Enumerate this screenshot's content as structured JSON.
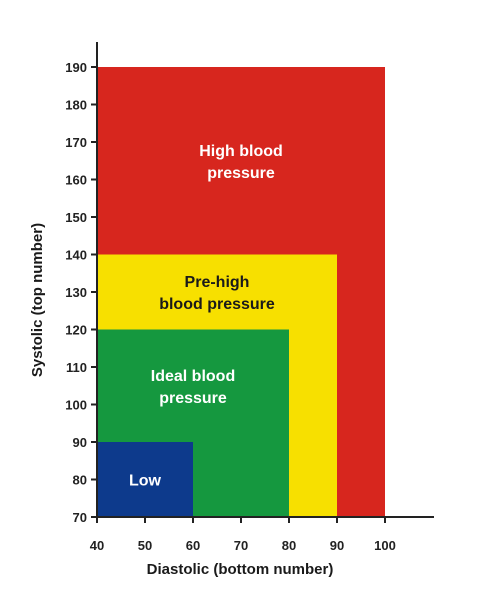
{
  "chart_data": {
    "type": "area",
    "title": "",
    "xlabel": "Diastolic (bottom number)",
    "ylabel": "Systolic (top number)",
    "xlim": [
      40,
      100
    ],
    "ylim": [
      70,
      190
    ],
    "x_ticks": [
      40,
      50,
      60,
      70,
      80,
      90,
      100
    ],
    "y_ticks": [
      70,
      80,
      90,
      100,
      110,
      120,
      130,
      140,
      150,
      160,
      170,
      180,
      190
    ],
    "zones": [
      {
        "label": "High blood pressure",
        "label_lines": [
          "High blood",
          "pressure"
        ],
        "x_max": 100,
        "y_max": 190,
        "color": "#d7261e",
        "text_color": "#ffffff"
      },
      {
        "label": "Pre-high blood pressure",
        "label_lines": [
          "Pre-high",
          "blood pressure"
        ],
        "x_max": 90,
        "y_max": 140,
        "color": "#f7e000",
        "text_color": "#1a1a1a"
      },
      {
        "label": "Ideal blood pressure",
        "label_lines": [
          "Ideal blood",
          "pressure"
        ],
        "x_max": 80,
        "y_max": 120,
        "color": "#15983f",
        "text_color": "#ffffff"
      },
      {
        "label": "Low",
        "label_lines": [
          "Low"
        ],
        "x_max": 60,
        "y_max": 90,
        "color": "#0d3a8c",
        "text_color": "#ffffff"
      }
    ]
  }
}
